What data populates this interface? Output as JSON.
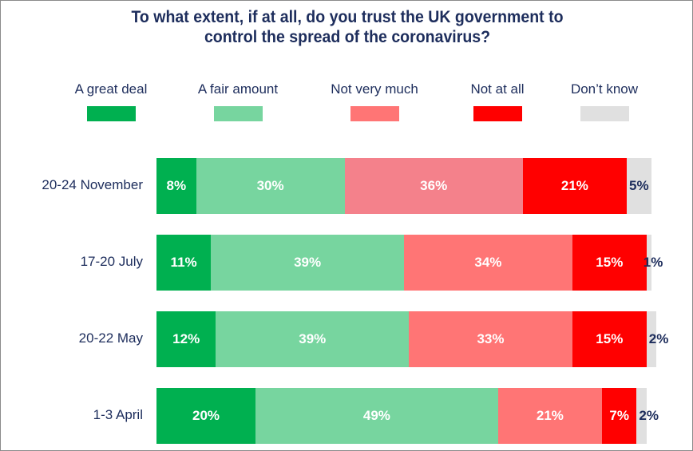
{
  "chart_data": {
    "type": "bar",
    "orientation": "horizontal",
    "stacked": true,
    "title_lines": [
      "To what extent, if at all, do you trust the UK government to",
      "control the spread of the coronavirus?"
    ],
    "categories": [
      "20-24 November",
      "17-20 July",
      "20-22 May",
      "1-3 April"
    ],
    "series": [
      {
        "name": "A great deal",
        "color": "#00b050",
        "values": [
          8,
          11,
          12,
          20
        ]
      },
      {
        "name": "A fair amount",
        "color": "#77d59f",
        "values": [
          30,
          39,
          39,
          49
        ]
      },
      {
        "name": "Not very much",
        "color_by_row": [
          "#f4818b",
          "#ff7575",
          "#ff7575",
          "#ff7575"
        ],
        "legend_color": "#ff7575",
        "values": [
          36,
          34,
          33,
          21
        ]
      },
      {
        "name": "Not at all",
        "color": "#ff0000",
        "values": [
          21,
          15,
          15,
          7
        ]
      },
      {
        "name": "Don’t know",
        "color": "#e0e0e0",
        "values": [
          5,
          1,
          2,
          2
        ]
      }
    ],
    "value_suffix": "%",
    "legend_position": "top",
    "grid": false
  }
}
